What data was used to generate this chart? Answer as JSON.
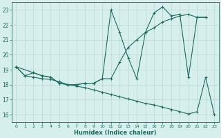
{
  "xlabel": "Humidex (Indice chaleur)",
  "bg_color": "#d6eeec",
  "grid_color": "#b8d8d4",
  "line_color": "#1a6b5e",
  "xlim": [
    -0.5,
    23.5
  ],
  "ylim": [
    15.5,
    23.5
  ],
  "xticks": [
    0,
    1,
    2,
    3,
    4,
    5,
    6,
    7,
    8,
    9,
    10,
    11,
    12,
    13,
    14,
    15,
    16,
    17,
    18,
    19,
    20,
    21,
    22,
    23
  ],
  "yticks": [
    16,
    17,
    18,
    19,
    20,
    21,
    22,
    23
  ],
  "line1_x": [
    0,
    1,
    2,
    3,
    4,
    5,
    6,
    7,
    8,
    9,
    10,
    11,
    12,
    13,
    14,
    15,
    16,
    17,
    18,
    19,
    20,
    21,
    22
  ],
  "line1_y": [
    19.2,
    18.6,
    18.8,
    18.6,
    18.5,
    18.1,
    18.0,
    18.0,
    18.1,
    18.1,
    18.4,
    23.0,
    21.5,
    19.8,
    18.4,
    21.5,
    22.8,
    23.2,
    22.6,
    22.7,
    18.5,
    22.5,
    22.5
  ],
  "line2_x": [
    0,
    2,
    3,
    4,
    5,
    6,
    7,
    8,
    9,
    10,
    11,
    12,
    13,
    14,
    15,
    16,
    17,
    18,
    19,
    20,
    21,
    22
  ],
  "line2_y": [
    19.2,
    18.8,
    18.6,
    18.5,
    18.1,
    18.0,
    18.0,
    18.1,
    18.1,
    18.4,
    18.4,
    19.5,
    20.5,
    21.0,
    21.5,
    21.8,
    22.2,
    22.4,
    22.6,
    22.7,
    22.5,
    22.5
  ],
  "line3_x": [
    0,
    1,
    2,
    3,
    4,
    5,
    6,
    7,
    8,
    9,
    10,
    11,
    12,
    13,
    14,
    15,
    16,
    17,
    18,
    19,
    20,
    21,
    22,
    23
  ],
  "line3_y": [
    19.2,
    18.6,
    18.5,
    18.4,
    18.35,
    18.2,
    18.0,
    17.9,
    17.8,
    17.65,
    17.5,
    17.35,
    17.2,
    17.05,
    16.9,
    16.75,
    16.65,
    16.5,
    16.35,
    16.2,
    16.05,
    16.2,
    18.5,
    16.0
  ]
}
